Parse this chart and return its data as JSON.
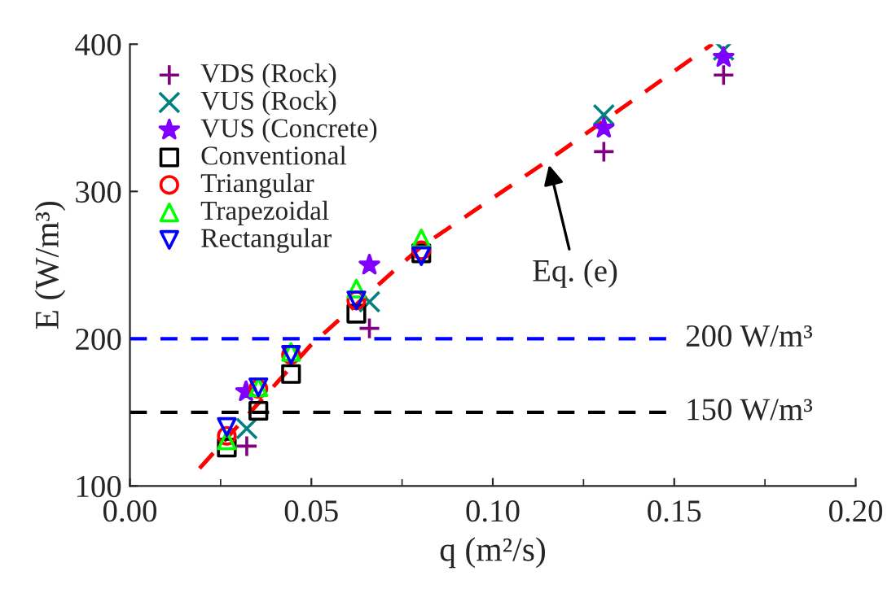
{
  "chart_data": {
    "type": "scatter",
    "xlabel": "q (m²/s)",
    "ylabel": "E (W/m³)",
    "xlim": [
      0,
      0.2
    ],
    "ylim": [
      100,
      400
    ],
    "xticks": [
      {
        "value": 0,
        "label": "0.00"
      },
      {
        "value": 0.05,
        "label": "0.05"
      },
      {
        "value": 0.1,
        "label": "0.10"
      },
      {
        "value": 0.15,
        "label": "0.15"
      },
      {
        "value": 0.2,
        "label": "0.20"
      }
    ],
    "yticks": [
      100,
      200,
      300,
      400
    ],
    "grid": false,
    "legend": "top left",
    "series": [
      {
        "name": "VDS (Rock)",
        "color": "#800080",
        "marker": "plus",
        "x": [
          0.0322,
          0.066,
          0.1306,
          0.1636
        ],
        "values": [
          127,
          207,
          327,
          379
        ]
      },
      {
        "name": "VUS (Rock)",
        "color": "#008080",
        "marker": "cross",
        "x": [
          0.0322,
          0.066,
          0.1306,
          0.1636
        ],
        "values": [
          139,
          225,
          352,
          396
        ]
      },
      {
        "name": "VUS (Concrete)",
        "color": "#8000ff",
        "marker": "star",
        "x": [
          0.032,
          0.066,
          0.1306,
          0.1636
        ],
        "values": [
          164,
          250,
          343,
          391
        ]
      },
      {
        "name": "Conventional",
        "color": "#000000",
        "marker": "square",
        "x": [
          0.0267,
          0.0354,
          0.0444,
          0.0624,
          0.0803
        ],
        "values": [
          126,
          151,
          176,
          217,
          258
        ]
      },
      {
        "name": "Triangular",
        "color": "#ff0000",
        "marker": "circle",
        "x": [
          0.0267,
          0.0354,
          0.0444,
          0.0624,
          0.0803
        ],
        "values": [
          134,
          166,
          189,
          226,
          260
        ]
      },
      {
        "name": "Trapezoidal",
        "color": "#00ff00",
        "marker": "triangle",
        "x": [
          0.0267,
          0.0354,
          0.0444,
          0.0624,
          0.0803
        ],
        "values": [
          131,
          167,
          191,
          234,
          268
        ]
      },
      {
        "name": "Rectangular",
        "color": "#0000ff",
        "marker": "triangle_down",
        "x": [
          0.0267,
          0.0354,
          0.0444,
          0.0624,
          0.0803
        ],
        "values": [
          140,
          167,
          189,
          226,
          256
        ]
      },
      {
        "type": "line",
        "color": "#ff0000",
        "line_style": "dashed",
        "marker": "none",
        "x": [
          0.0192,
          0.05,
          0.08,
          0.1152,
          0.1605
        ],
        "values": [
          112,
          196,
          262,
          321,
          400
        ]
      }
    ],
    "ref_lines": [
      {
        "axis": "y",
        "value": 200,
        "label": "200 W/m³",
        "color": "#0000ff",
        "line_style": "dashed"
      },
      {
        "axis": "y",
        "value": 150,
        "label": "150 W/m³",
        "color": "#000000",
        "line_style": "dashed"
      }
    ],
    "annotations": [
      {
        "text": "Eq. (e)",
        "x": 0.1152,
        "y": 321
      }
    ]
  }
}
